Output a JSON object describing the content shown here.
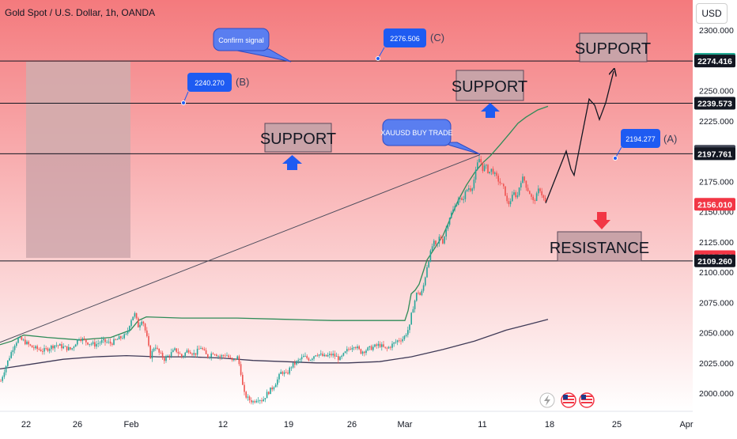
{
  "header": {
    "title": "Gold Spot / U.S. Dollar, 1h, OANDA",
    "currency": "USD"
  },
  "colors": {
    "bg_top": "#f47a7d",
    "bg_bottom": "#ffffff",
    "candle_up": "#26a69a",
    "candle_down": "#ef5350",
    "ma_fast": "#2e8b57",
    "ma_slow": "#3f3a57",
    "label_blue": "#1e5bf2",
    "box_grey": "#c9a3a8"
  },
  "chart_data": {
    "type": "candlestick",
    "symbol": "XAUUSD",
    "timeframe": "1h",
    "ylim": [
      1990,
      2310
    ],
    "y_ticks": [
      2000,
      2025,
      2050,
      2075,
      2100,
      2125,
      2150,
      2175,
      2200,
      2225,
      2250,
      2275,
      2300
    ],
    "y_tick_labels": [
      "2000.000",
      "2025.000",
      "2050.000",
      "2075.000",
      "2100.000",
      "2125.000",
      "2150.000",
      "2175.000",
      "2200.000",
      "2225.000",
      "2250.000",
      "2275.000",
      "2300.000"
    ],
    "x_labels": [
      "22",
      "26",
      "Feb",
      "12",
      "19",
      "26",
      "Mar",
      "11",
      "18",
      "25",
      "Apr"
    ],
    "price_path": [
      [
        1,
        2010
      ],
      [
        6,
        2020
      ],
      [
        12,
        2030
      ],
      [
        18,
        2040
      ],
      [
        23,
        2045
      ],
      [
        30,
        2043
      ],
      [
        40,
        2038
      ],
      [
        55,
        2035
      ],
      [
        70,
        2040
      ],
      [
        90,
        2036
      ],
      [
        100,
        2046
      ],
      [
        110,
        2042
      ],
      [
        120,
        2040
      ],
      [
        130,
        2043
      ],
      [
        140,
        2041
      ],
      [
        150,
        2045
      ],
      [
        160,
        2048
      ],
      [
        165,
        2060
      ],
      [
        170,
        2066
      ],
      [
        175,
        2055
      ],
      [
        180,
        2062
      ],
      [
        186,
        2045
      ],
      [
        190,
        2030
      ],
      [
        196,
        2040
      ],
      [
        200,
        2034
      ],
      [
        208,
        2028
      ],
      [
        215,
        2032
      ],
      [
        222,
        2036
      ],
      [
        230,
        2030
      ],
      [
        238,
        2036
      ],
      [
        246,
        2032
      ],
      [
        254,
        2038
      ],
      [
        262,
        2030
      ],
      [
        270,
        2034
      ],
      [
        278,
        2030
      ],
      [
        286,
        2032
      ],
      [
        294,
        2026
      ],
      [
        300,
        2030
      ],
      [
        304,
        2020
      ],
      [
        308,
        2000
      ],
      [
        314,
        1995
      ],
      [
        320,
        1993
      ],
      [
        326,
        1996
      ],
      [
        332,
        1994
      ],
      [
        338,
        2000
      ],
      [
        344,
        2004
      ],
      [
        350,
        2010
      ],
      [
        356,
        2018
      ],
      [
        362,
        2015
      ],
      [
        368,
        2022
      ],
      [
        376,
        2026
      ],
      [
        384,
        2030
      ],
      [
        392,
        2028
      ],
      [
        400,
        2033
      ],
      [
        410,
        2030
      ],
      [
        420,
        2032
      ],
      [
        430,
        2028
      ],
      [
        440,
        2036
      ],
      [
        448,
        2040
      ],
      [
        456,
        2034
      ],
      [
        464,
        2036
      ],
      [
        472,
        2038
      ],
      [
        480,
        2040
      ],
      [
        488,
        2036
      ],
      [
        496,
        2040
      ],
      [
        504,
        2044
      ],
      [
        510,
        2045
      ],
      [
        514,
        2050
      ],
      [
        518,
        2055
      ],
      [
        521,
        2068
      ],
      [
        524,
        2075
      ],
      [
        528,
        2085
      ],
      [
        532,
        2080
      ],
      [
        536,
        2090
      ],
      [
        540,
        2105
      ],
      [
        544,
        2115
      ],
      [
        548,
        2125
      ],
      [
        552,
        2120
      ],
      [
        556,
        2130
      ],
      [
        560,
        2125
      ],
      [
        564,
        2135
      ],
      [
        568,
        2145
      ],
      [
        572,
        2150
      ],
      [
        576,
        2155
      ],
      [
        580,
        2162
      ],
      [
        584,
        2158
      ],
      [
        588,
        2165
      ],
      [
        592,
        2170
      ],
      [
        596,
        2168
      ],
      [
        600,
        2178
      ],
      [
        604,
        2190
      ],
      [
        607,
        2195
      ],
      [
        610,
        2185
      ],
      [
        614,
        2188
      ],
      [
        618,
        2182
      ],
      [
        622,
        2185
      ],
      [
        626,
        2180
      ],
      [
        630,
        2176
      ],
      [
        634,
        2172
      ],
      [
        638,
        2168
      ],
      [
        642,
        2155
      ],
      [
        646,
        2160
      ],
      [
        650,
        2165
      ],
      [
        654,
        2162
      ],
      [
        658,
        2175
      ],
      [
        662,
        2178
      ],
      [
        666,
        2170
      ],
      [
        670,
        2165
      ],
      [
        674,
        2158
      ],
      [
        678,
        2162
      ],
      [
        682,
        2170
      ],
      [
        686,
        2163
      ],
      [
        690,
        2157
      ]
    ],
    "ma_fast": [
      [
        0,
        2040
      ],
      [
        15,
        2043
      ],
      [
        30,
        2048
      ],
      [
        60,
        2046
      ],
      [
        100,
        2044
      ],
      [
        140,
        2046
      ],
      [
        165,
        2052
      ],
      [
        175,
        2060
      ],
      [
        185,
        2063
      ],
      [
        230,
        2062
      ],
      [
        300,
        2062
      ],
      [
        360,
        2061
      ],
      [
        420,
        2060
      ],
      [
        470,
        2060
      ],
      [
        512,
        2060
      ],
      [
        516,
        2068
      ],
      [
        520,
        2082
      ],
      [
        525,
        2085
      ],
      [
        530,
        2090
      ],
      [
        535,
        2100
      ],
      [
        540,
        2110
      ],
      [
        550,
        2120
      ],
      [
        560,
        2130
      ],
      [
        570,
        2145
      ],
      [
        580,
        2160
      ],
      [
        590,
        2172
      ],
      [
        600,
        2182
      ],
      [
        610,
        2190
      ],
      [
        620,
        2196
      ],
      [
        632,
        2205
      ],
      [
        645,
        2215
      ],
      [
        655,
        2223
      ],
      [
        665,
        2228
      ],
      [
        680,
        2234
      ],
      [
        693,
        2237
      ]
    ],
    "ma_slow": [
      [
        0,
        2020
      ],
      [
        40,
        2024
      ],
      [
        80,
        2028
      ],
      [
        120,
        2030
      ],
      [
        160,
        2031
      ],
      [
        200,
        2030
      ],
      [
        240,
        2030
      ],
      [
        280,
        2029
      ],
      [
        320,
        2027
      ],
      [
        360,
        2026
      ],
      [
        400,
        2025
      ],
      [
        440,
        2025
      ],
      [
        480,
        2026
      ],
      [
        520,
        2030
      ],
      [
        560,
        2036
      ],
      [
        600,
        2043
      ],
      [
        640,
        2052
      ],
      [
        670,
        2057
      ],
      [
        693,
        2061
      ]
    ],
    "projection_path": [
      [
        690,
        2157
      ],
      [
        716,
        2200
      ],
      [
        722,
        2185
      ],
      [
        726,
        2180
      ],
      [
        745,
        2243
      ],
      [
        752,
        2238
      ],
      [
        758,
        2226
      ],
      [
        766,
        2240
      ],
      [
        776,
        2266
      ]
    ],
    "horizontal_levels": [
      2274.416,
      2239.573,
      2197.761,
      2109.26
    ],
    "trendline": [
      [
        0,
        2042
      ],
      [
        607,
        2197
      ]
    ],
    "price_tags": [
      {
        "value": "2275.809",
        "y": 2275.809,
        "bg": "#22ab94",
        "fg": "#ffffff"
      },
      {
        "value": "2274.416",
        "y": 2274.416,
        "bg": "#131722",
        "fg": "#ffffff"
      },
      {
        "value": "2239.573",
        "y": 2239.573,
        "bg": "#131722",
        "fg": "#ffffff"
      },
      {
        "value": "2199.852",
        "y": 2199.852,
        "bg": "#404555",
        "fg": "#ffffff"
      },
      {
        "value": "2197.761",
        "y": 2197.761,
        "bg": "#131722",
        "fg": "#ffffff"
      },
      {
        "value": "2156.010",
        "y": 2156.01,
        "bg": "#f23645",
        "fg": "#ffffff"
      },
      {
        "value": "2112.744",
        "y": 2112.744,
        "bg": "#f23645",
        "fg": "#ffffff"
      },
      {
        "value": "2109.260",
        "y": 2109.26,
        "bg": "#131722",
        "fg": "#ffffff"
      }
    ],
    "annotations": {
      "support_labels": [
        "SUPPORT",
        "SUPPORT",
        "SUPPORT"
      ],
      "resistance_label": "RESISTANCE",
      "callouts": [
        "Confirm signal",
        "XAUUSD BUY TRADE"
      ],
      "wave_labels": [
        {
          "value": "2240.270",
          "tag": "(B)"
        },
        {
          "value": "2276.506",
          "tag": "(C)"
        },
        {
          "value": "2194.277",
          "tag": "(A)"
        }
      ]
    }
  }
}
